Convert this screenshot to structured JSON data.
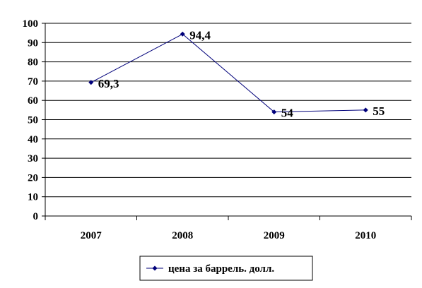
{
  "chart_data": {
    "type": "line",
    "categories": [
      "2007",
      "2008",
      "2009",
      "2010"
    ],
    "series": [
      {
        "name": "цена за баррель. долл.",
        "values": [
          69.3,
          94.4,
          54,
          55
        ],
        "labels": [
          "69,3",
          "94,4",
          "54",
          "55"
        ],
        "color": "#00007a"
      }
    ],
    "yticks": [
      "0",
      "10",
      "20",
      "30",
      "40",
      "50",
      "60",
      "70",
      "80",
      "90",
      "100"
    ],
    "ylim": [
      0,
      100
    ],
    "grid": true,
    "legend": "bottom"
  }
}
